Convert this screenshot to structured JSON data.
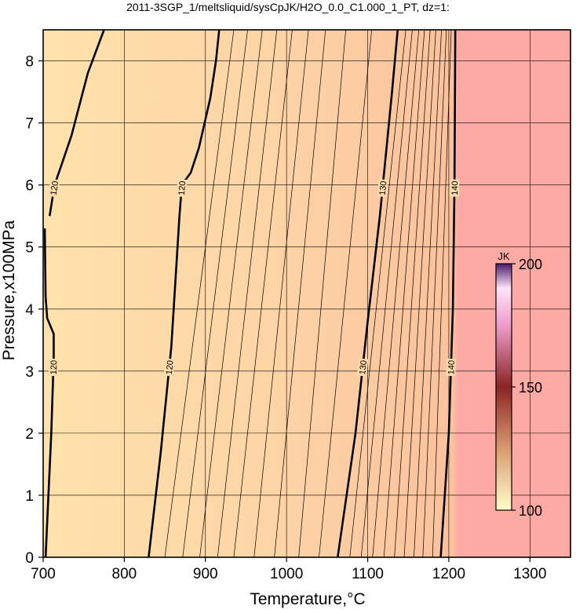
{
  "chart_data": {
    "type": "contour",
    "title": "2011-3SGP_1/meltsliquid/sysCpJK/H2O_0.0_C1.000_1_PT, dz=1:",
    "x_label": "Temperature,°C",
    "y_label": "Pressure,x100MPa",
    "xlim": [
      700,
      1350
    ],
    "ylim": [
      0,
      8.5
    ],
    "xticks": [
      700,
      800,
      900,
      1000,
      1100,
      1200,
      1300
    ],
    "yticks": [
      0,
      1,
      2,
      3,
      4,
      5,
      6,
      7,
      8
    ],
    "grid": true,
    "fill": {
      "x": [
        700,
        1000,
        1205,
        1212,
        1350
      ],
      "colors": [
        "#ffe2ab",
        "#fdd3a6",
        "#fbc19c",
        "#fda9a4",
        "#fda9a4"
      ]
    },
    "contours": [
      {
        "level": 120,
        "labeled": true,
        "x": [
          703,
          710,
          713,
          713,
          705,
          703,
          702
        ],
        "y": [
          0,
          2,
          3.2,
          3.6,
          3.85,
          4.2,
          5.3
        ]
      },
      {
        "level": 120,
        "labeled": true,
        "x": [
          708,
          714,
          722,
          735,
          755,
          775
        ],
        "y": [
          5.5,
          6.0,
          6.3,
          6.8,
          7.8,
          8.5
        ]
      },
      {
        "level": 120,
        "labeled": true,
        "x": [
          830,
          845,
          858,
          868,
          871,
          882,
          892,
          906,
          913,
          917
        ],
        "y": [
          0,
          1.7,
          3.4,
          5.5,
          6.0,
          6.2,
          6.6,
          7.4,
          8.0,
          8.5
        ]
      },
      {
        "level": 130,
        "labeled": true,
        "x": [
          1063,
          1085,
          1100,
          1115,
          1130,
          1137
        ],
        "y": [
          0,
          2,
          3.8,
          5.5,
          7.5,
          8.5
        ]
      },
      {
        "level": 140,
        "labeled": true,
        "x": [
          1190,
          1200,
          1205,
          1207,
          1208
        ],
        "y": [
          0,
          2,
          4,
          6,
          8.5
        ]
      },
      {
        "level": 121,
        "labeled": false,
        "x": [
          850,
          935
        ],
        "y": [
          0,
          8.5
        ]
      },
      {
        "level": 122,
        "labeled": false,
        "x": [
          872,
          952
        ],
        "y": [
          0,
          8.5
        ]
      },
      {
        "level": 123,
        "labeled": false,
        "x": [
          893,
          970
        ],
        "y": [
          0,
          8.5
        ]
      },
      {
        "level": 124,
        "labeled": false,
        "x": [
          915,
          988
        ],
        "y": [
          0,
          8.5
        ]
      },
      {
        "level": 125,
        "labeled": false,
        "x": [
          935,
          1007
        ],
        "y": [
          0,
          8.5
        ]
      },
      {
        "level": 126,
        "labeled": false,
        "x": [
          960,
          1027
        ],
        "y": [
          0,
          8.5
        ]
      },
      {
        "level": 127,
        "labeled": false,
        "x": [
          985,
          1048
        ],
        "y": [
          0,
          8.5
        ]
      },
      {
        "level": 128,
        "labeled": false,
        "x": [
          1015,
          1073
        ],
        "y": [
          0,
          8.5
        ]
      },
      {
        "level": 129,
        "labeled": false,
        "x": [
          1040,
          1105
        ],
        "y": [
          0,
          8.5
        ]
      },
      {
        "level": 131,
        "labeled": false,
        "x": [
          1078,
          1147
        ],
        "y": [
          0,
          8.5
        ]
      },
      {
        "level": 132,
        "labeled": false,
        "x": [
          1092,
          1155
        ],
        "y": [
          0,
          8.5
        ]
      },
      {
        "level": 133,
        "labeled": false,
        "x": [
          1106,
          1163
        ],
        "y": [
          0,
          8.5
        ]
      },
      {
        "level": 134,
        "labeled": false,
        "x": [
          1120,
          1170
        ],
        "y": [
          0,
          8.5
        ]
      },
      {
        "level": 135,
        "labeled": false,
        "x": [
          1133,
          1177
        ],
        "y": [
          0,
          8.5
        ]
      },
      {
        "level": 136,
        "labeled": false,
        "x": [
          1145,
          1184
        ],
        "y": [
          0,
          8.5
        ]
      },
      {
        "level": 137,
        "labeled": false,
        "x": [
          1157,
          1191
        ],
        "y": [
          0,
          8.5
        ]
      },
      {
        "level": 138,
        "labeled": false,
        "x": [
          1168,
          1197
        ],
        "y": [
          0,
          8.5
        ]
      },
      {
        "level": 139,
        "labeled": false,
        "x": [
          1180,
          1203
        ],
        "y": [
          0,
          8.5
        ]
      }
    ],
    "colorbar": {
      "label": "JK",
      "lim": [
        100,
        200
      ],
      "ticks": [
        100,
        150,
        200
      ],
      "stops": [
        100,
        125,
        150,
        175,
        190,
        200
      ],
      "colors": [
        "#ffffc8",
        "#d89a70",
        "#8b2424",
        "#ee9ccc",
        "#ffe4fa",
        "#4a1a6a"
      ]
    }
  }
}
